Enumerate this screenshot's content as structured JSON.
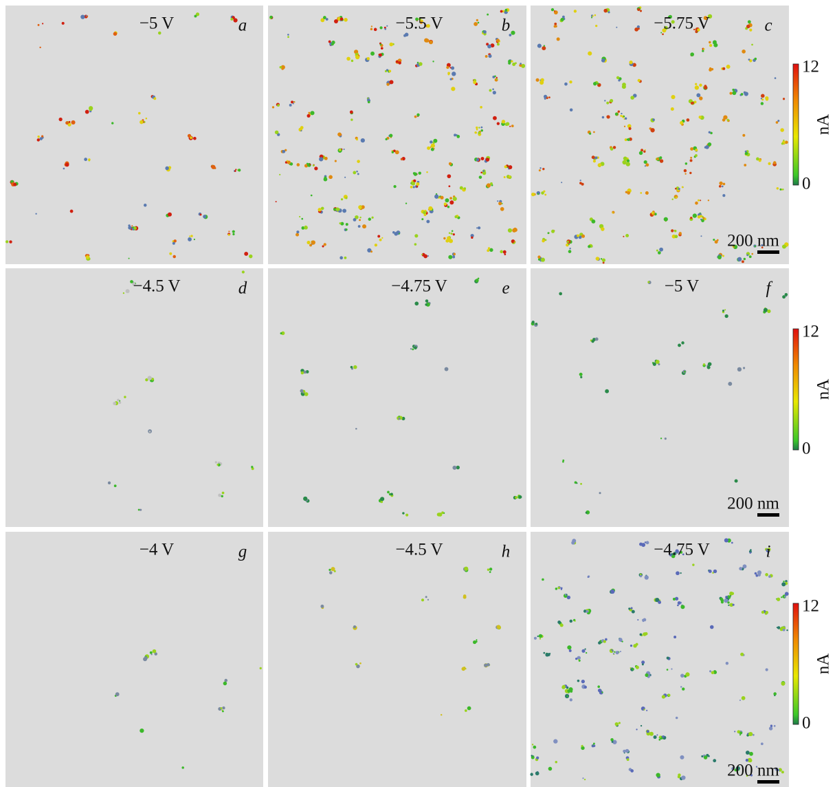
{
  "panels": [
    {
      "voltage": "−5 V",
      "letter": "a"
    },
    {
      "voltage": "−5.5 V",
      "letter": "b"
    },
    {
      "voltage": "−5.75 V",
      "letter": "c"
    },
    {
      "voltage": "−4.5 V",
      "letter": "d"
    },
    {
      "voltage": "−4.75 V",
      "letter": "e"
    },
    {
      "voltage": "−5 V",
      "letter": "f"
    },
    {
      "voltage": "−4 V",
      "letter": "g"
    },
    {
      "voltage": "−4.5 V",
      "letter": "h"
    },
    {
      "voltage": "−4.75 V",
      "letter": "i"
    }
  ],
  "colorbars": [
    {
      "max": 12,
      "min": 0,
      "unit": "nA"
    },
    {
      "max": 12,
      "min": 0,
      "unit": "nA"
    },
    {
      "max": 12,
      "min": 0,
      "unit": "nA"
    }
  ],
  "scale_bars": [
    "200 nm",
    "200 nm",
    "200 nm"
  ]
}
